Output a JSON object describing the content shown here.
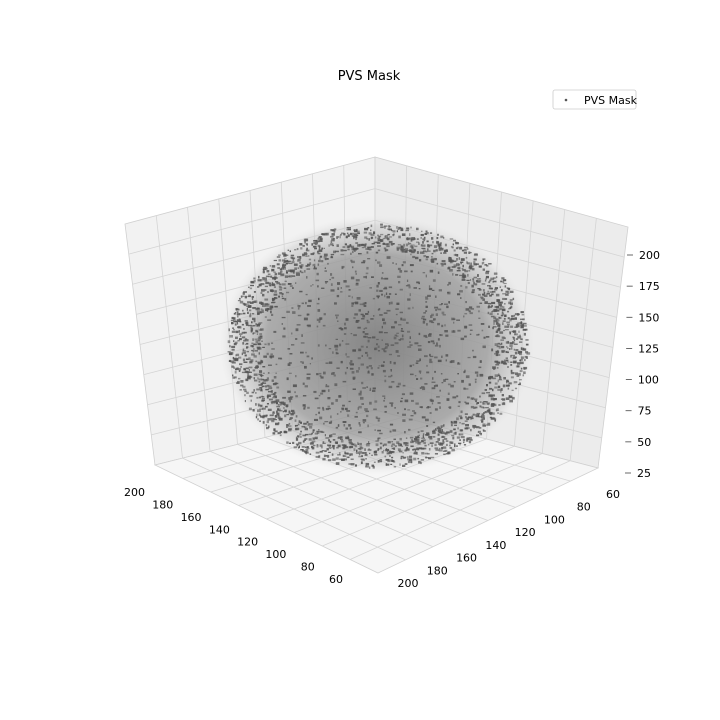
{
  "chart_data": {
    "type": "scatter",
    "projection": "3d",
    "title": "PVS Mask",
    "legend": {
      "entries": [
        "PVS Mask"
      ],
      "placement": "top-right"
    },
    "grid": true,
    "series": [
      {
        "name": "PVS Mask",
        "color": "#555555",
        "marker": "point"
      }
    ],
    "axes": {
      "x": {
        "ticks": [
          "200",
          "180",
          "160",
          "140",
          "120",
          "100",
          "80",
          "60"
        ],
        "range": [
          50,
          210
        ]
      },
      "y": {
        "ticks": [
          "200",
          "180",
          "160",
          "140",
          "120",
          "100",
          "80",
          "60"
        ],
        "range": [
          50,
          210
        ]
      },
      "z": {
        "ticks": [
          "25",
          "50",
          "75",
          "100",
          "125",
          "150",
          "175",
          "200"
        ],
        "range": [
          25,
          215
        ]
      }
    },
    "colors": {
      "marker": "#555555",
      "brain": "#8c8c8c",
      "pane": "#f2f2f2",
      "grid": "#d4d4d4"
    }
  }
}
